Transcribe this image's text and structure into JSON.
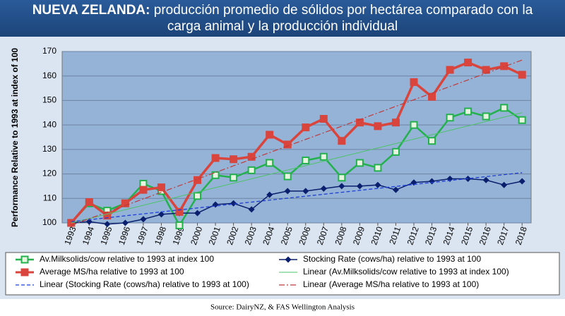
{
  "chart_data": {
    "type": "line",
    "title_prefix": "NUEVA ZELANDA:",
    "title": "producción promedio de sólidos por hectárea comparado con la carga animal y la producción individual",
    "y_label": "Performance Relative to 1993 at index of 100",
    "source": "Source: DairyNZ, & FAS Wellington Analysis",
    "categories": [
      "1993",
      "1994",
      "1995",
      "1996",
      "1997",
      "1998",
      "1999",
      "2000",
      "2001",
      "2002",
      "2003",
      "2004",
      "2005",
      "2006",
      "2007",
      "2008",
      "2009",
      "2010",
      "2011",
      "2012",
      "2013",
      "2014",
      "2015",
      "2016",
      "2017",
      "2018"
    ],
    "ylim": [
      100,
      170
    ],
    "yticks": [
      100,
      110,
      120,
      130,
      140,
      150,
      160,
      170
    ],
    "grid": true,
    "series": [
      {
        "name": "Av.Milksolids/cow relative to 1993 at index 100",
        "color": "#22b14c",
        "marker": "square-open",
        "width": 2.5,
        "values": [
          100,
          108,
          105,
          108,
          116,
          113,
          99,
          111,
          119.5,
          118.5,
          121.5,
          124.5,
          119,
          125.5,
          127,
          118.5,
          124.5,
          122.5,
          129,
          140,
          133.5,
          143,
          145.5,
          143.5,
          147,
          142
        ]
      },
      {
        "name": "Stocking Rate (cows/ha) relative to 1993 at 100",
        "color": "#0a1f6e",
        "marker": "diamond",
        "width": 1.5,
        "values": [
          100,
          100.5,
          99.5,
          100,
          101.5,
          103.5,
          104,
          104,
          107.5,
          108,
          105.5,
          111.5,
          113,
          113,
          114,
          115,
          115,
          115.5,
          113.5,
          116.5,
          117,
          118,
          118,
          117.5,
          115.5,
          117
        ]
      },
      {
        "name": "Average MS/ha relative to 1993 at 100",
        "color": "#d9443c",
        "marker": "square",
        "width": 3.5,
        "values": [
          100,
          108.5,
          103,
          108,
          113.5,
          114.5,
          104.5,
          117.5,
          126.5,
          126,
          127,
          136,
          132,
          139,
          142.5,
          133.5,
          141,
          139.5,
          141,
          157.5,
          151.5,
          162.5,
          165.5,
          162.5,
          164,
          160.5
        ]
      },
      {
        "name": "Linear (Av.Milksolids/cow relative to 1993 at index 100)",
        "color": "#4dc36a",
        "dash": "none",
        "width": 1,
        "values": [
          100,
          101.8,
          103.6,
          105.4,
          107.2,
          109,
          110.8,
          112.6,
          114.4,
          116.2,
          118,
          119.8,
          121.6,
          123.4,
          125.2,
          127,
          128.8,
          130.6,
          132.4,
          134.2,
          136,
          137.8,
          139.6,
          141.4,
          143.2,
          145
        ]
      },
      {
        "name": "Linear (Stocking Rate (cows/ha) relative to 1993 at 100)",
        "color": "#1f3fd6",
        "dash": "5 3",
        "width": 1.3,
        "values": [
          100.5,
          101.3,
          102.1,
          102.9,
          103.7,
          104.5,
          105.3,
          106.1,
          106.9,
          107.7,
          108.5,
          109.3,
          110.1,
          110.9,
          111.7,
          112.5,
          113.3,
          114.1,
          114.9,
          115.7,
          116.5,
          117.3,
          118.1,
          118.9,
          119.7,
          120.5
        ]
      },
      {
        "name": "Linear (Average MS/ha relative to 1993 at 100)",
        "color": "#c03a3a",
        "dash": "8 3 2 3",
        "width": 1.2,
        "values": [
          99,
          101.7,
          104.4,
          107.1,
          109.8,
          112.5,
          115.2,
          117.9,
          120.6,
          123.3,
          126,
          128.7,
          131.4,
          134.1,
          136.8,
          139.5,
          142.2,
          144.9,
          147.6,
          150.3,
          153,
          155.7,
          158.4,
          161.1,
          163.8,
          166.5
        ]
      }
    ]
  }
}
